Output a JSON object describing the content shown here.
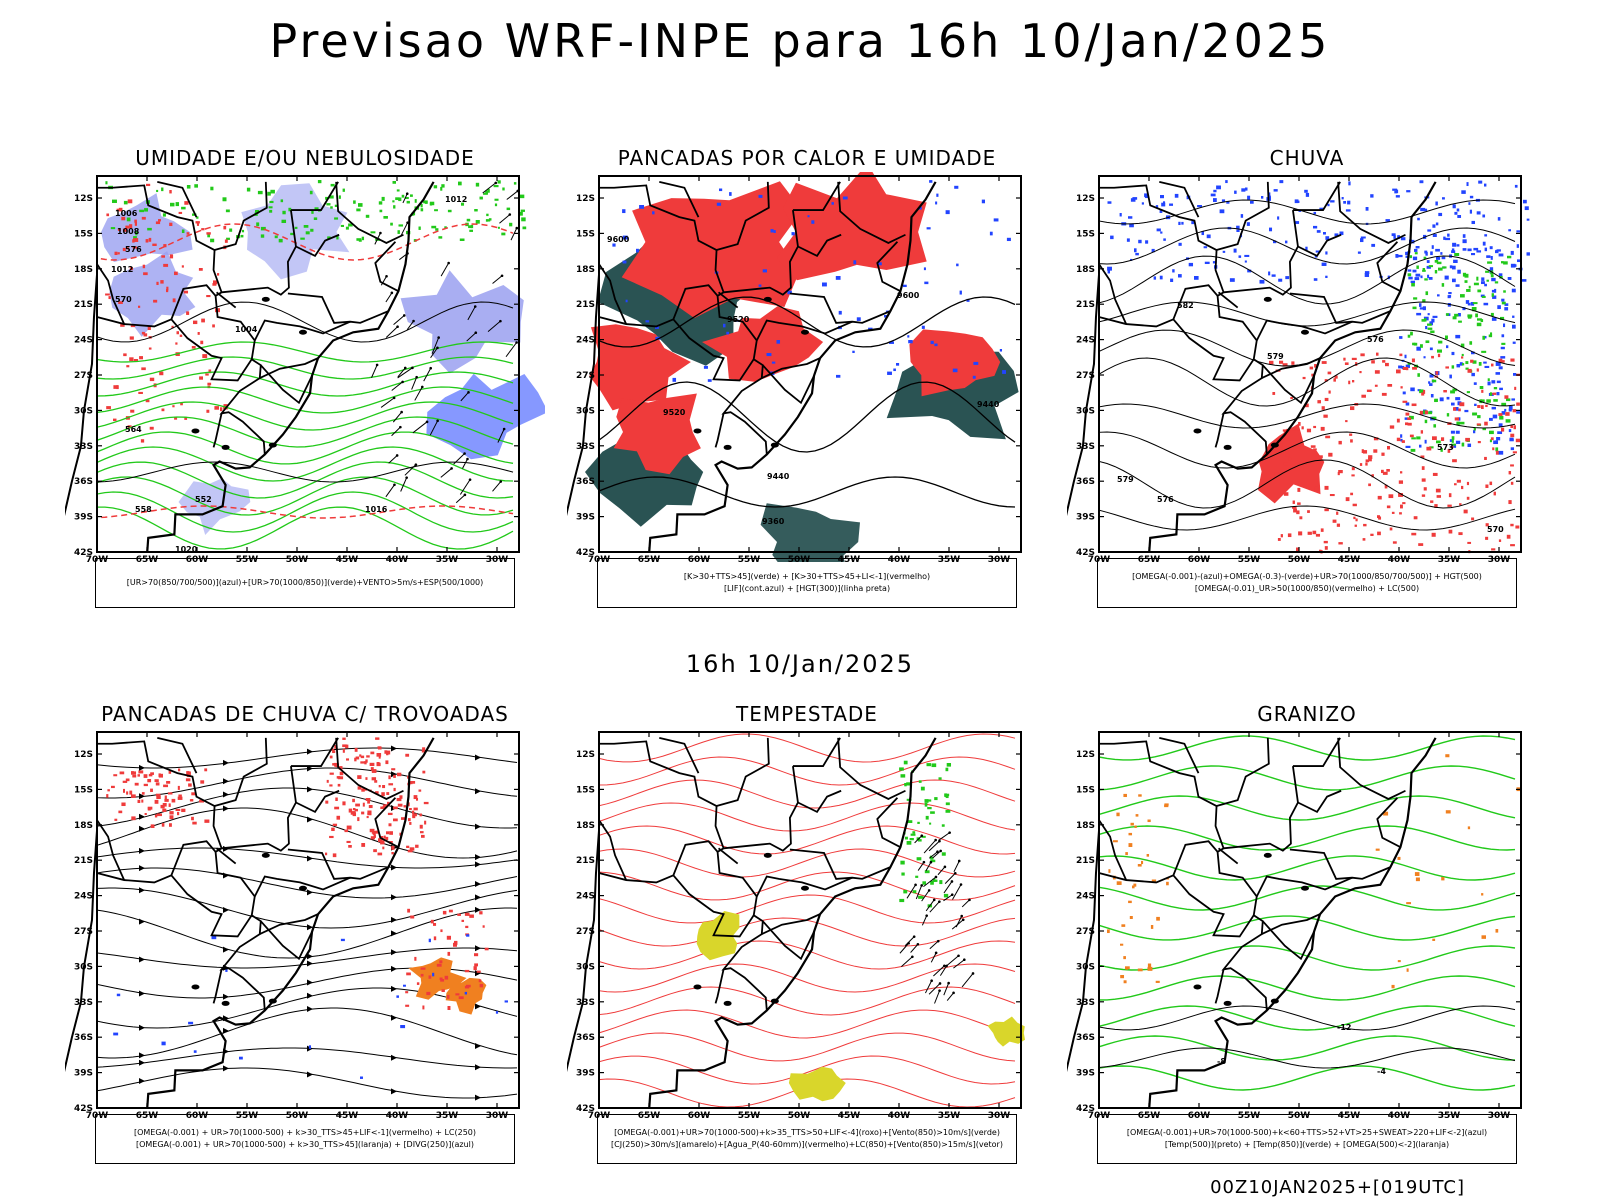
{
  "header": {
    "title": "Previsao WRF-INPE  para 16h 10/Jan/2025",
    "middle_title": "16h 10/Jan/2025",
    "footer": "00Z10JAN2025+[019UTC]"
  },
  "axes": {
    "lat_labels": [
      "12S",
      "15S",
      "18S",
      "21S",
      "24S",
      "27S",
      "30S",
      "33S",
      "36S",
      "39S",
      "42S"
    ],
    "lon_labels": [
      "70W",
      "65W",
      "60W",
      "55W",
      "50W",
      "45W",
      "40W",
      "35W",
      "30W"
    ]
  },
  "colors": {
    "red": "#ef3b3b",
    "green": "#22c91a",
    "blue": "#2244ff",
    "lavender": "#9aa0f0",
    "darkteal": "#1f4a4a",
    "yellow": "#d9d62b",
    "orange": "#f08020",
    "map": "#000000"
  },
  "panels": [
    {
      "title": "UMIDADE E/OU NEBULOSIDADE",
      "legend": [
        "[UR>70(850/700/500)](azul)+[UR>70(1000/850)](verde)+VENTO>5m/s+ESP(500/1000)"
      ],
      "labels": [
        "1006",
        "1008",
        "1004",
        "1012",
        "576",
        "570",
        "564",
        "558",
        "552",
        "1016",
        "1020",
        "1012"
      ]
    },
    {
      "title": "PANCADAS POR CALOR E UMIDADE",
      "legend": [
        "[K>30+TTS>45](verde) + [K>30+TTS>45+LI<-1](vermelho)",
        "[LIF](cont.azul) + [HGT(300)](linha preta)"
      ],
      "labels": [
        "9600",
        "9520",
        "9440",
        "9360",
        "9600",
        "9520",
        "9440"
      ]
    },
    {
      "title": "CHUVA",
      "legend": [
        "[OMEGA(-0.001)-(azul)+OMEGA(-0.3)-(verde)+UR>70(1000/850/700/500)] + HGT(500)",
        "[OMEGA(-0.01)_UR>50(1000/850)(vermelho) + LC(500)"
      ],
      "labels": [
        "582",
        "579",
        "576",
        "573",
        "570",
        "579",
        "576"
      ]
    },
    {
      "title": "PANCADAS DE CHUVA C/ TROVOADAS",
      "legend": [
        "[OMEGA(-0.001) + UR>70(1000-500) + k>30_TTS>45+LIF<-1](vermelho) + LC(250)",
        "[OMEGA(-0.001) + UR>70(1000-500) + k>30_TTS>45](laranja) + [DIVG(250)](azul)"
      ],
      "labels": []
    },
    {
      "title": "TEMPESTADE",
      "legend": [
        "[OMEGA(-0.001)+UR>70(1000-500)+k>35_TTS>50+LIF<-4](roxo)+[Vento(850)>10m/s](verde)",
        "[CJ(250)>30m/s](amarelo)+[Agua_P(40-60mm)](vermelho)+LC(850)+[Vento(850)>15m/s](vetor)"
      ],
      "labels": []
    },
    {
      "title": "GRANIZO",
      "legend": [
        "[OMEGA(-0.001)+UR>70(1000-500)+k<60+TTS>52+VT>25+SWEAT>220+LIF<-2](azul)",
        "[Temp(500)](preto) + [Temp(850)](verde) + [OMEGA(500)<-2](laranja)"
      ],
      "labels": [
        "-12",
        "-8",
        "-4"
      ]
    }
  ]
}
